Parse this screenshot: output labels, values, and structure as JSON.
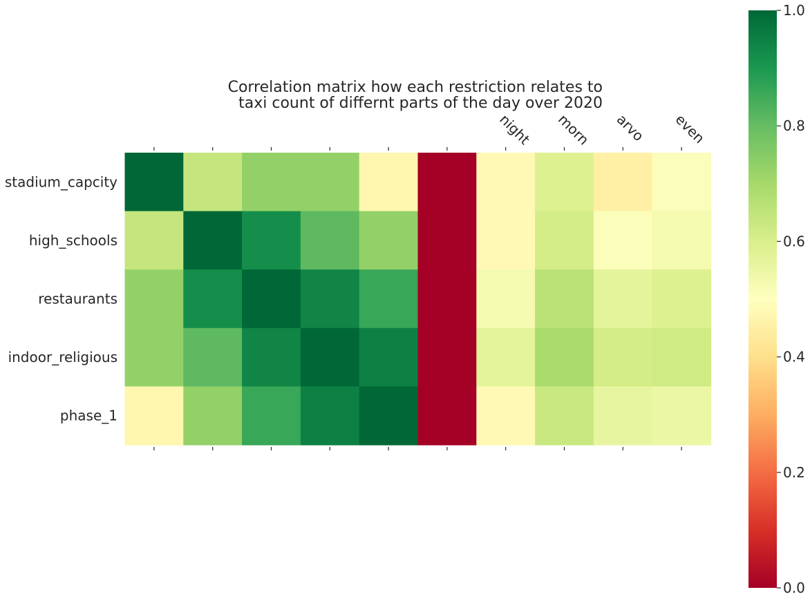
{
  "chart_data": {
    "type": "heatmap",
    "title_lines": [
      "Correlation matrix how each restriction relates to",
      "taxi count of differnt parts of the day over 2020"
    ],
    "x_tick_labels": [
      "",
      "",
      "",
      "",
      "",
      "",
      "night",
      "morn",
      "arvo",
      "even"
    ],
    "y_tick_labels": [
      "stadium_capcity",
      "high_schools",
      "restaurants",
      "indoor_religious",
      "phase_1"
    ],
    "values": [
      [
        1.0,
        0.64,
        0.73,
        0.73,
        0.47,
        0.0,
        0.48,
        0.59,
        0.45,
        0.51
      ],
      [
        0.64,
        1.0,
        0.92,
        0.81,
        0.73,
        0.0,
        0.48,
        0.61,
        0.51,
        0.53
      ],
      [
        0.73,
        0.92,
        1.0,
        0.94,
        0.86,
        0.0,
        0.53,
        0.66,
        0.57,
        0.59
      ],
      [
        0.73,
        0.81,
        0.94,
        1.0,
        0.95,
        0.0,
        0.57,
        0.69,
        0.61,
        0.62
      ],
      [
        0.47,
        0.73,
        0.86,
        0.95,
        1.0,
        0.0,
        0.48,
        0.63,
        0.56,
        0.55
      ]
    ],
    "colormap": "RdYlGn",
    "colorbar": {
      "vmin": 0.0,
      "vmax": 1.0,
      "ticks": [
        "0.0",
        "0.2",
        "0.4",
        "0.6",
        "0.8",
        "1.0"
      ]
    },
    "grid": false,
    "x_tick_position": "top and bottom",
    "x_label_rotation": "-45 degrees"
  }
}
